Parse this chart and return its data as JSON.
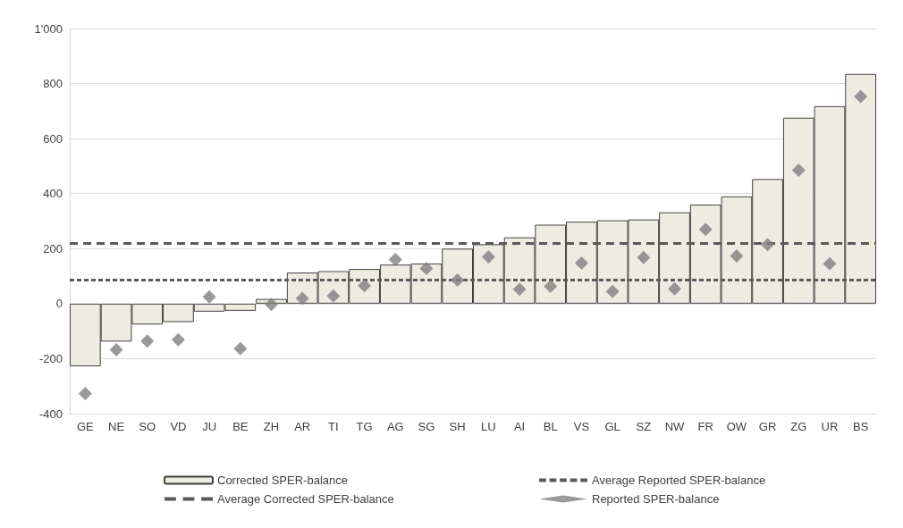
{
  "chart_data": {
    "type": "bar",
    "categories": [
      "GE",
      "NE",
      "SO",
      "VD",
      "JU",
      "BE",
      "ZH",
      "AR",
      "TI",
      "TG",
      "AG",
      "SG",
      "SH",
      "LU",
      "AI",
      "BL",
      "VS",
      "GL",
      "SZ",
      "NW",
      "FR",
      "OW",
      "GR",
      "ZG",
      "UR",
      "BS"
    ],
    "series": [
      {
        "name": "Corrected SPER-balance",
        "color": "#eeece1",
        "values": [
          -228,
          -138,
          -76,
          -67,
          -29,
          -26,
          17,
          113,
          118,
          126,
          142,
          146,
          200,
          216,
          241,
          287,
          298,
          303,
          306,
          332,
          360,
          390,
          453,
          676,
          718,
          835
        ]
      },
      {
        "name": "Reported SPER-balance",
        "type": "scatter",
        "color": "#7f7f7f",
        "marker": "diamond",
        "values": [
          -327,
          -168,
          -136,
          -131,
          25,
          -164,
          -3,
          19,
          28,
          65,
          160,
          128,
          86,
          170,
          52,
          63,
          147,
          44,
          168,
          54,
          270,
          173,
          215,
          485,
          145,
          753
        ]
      }
    ],
    "ref_lines": [
      {
        "axis": "y",
        "value": 220,
        "label": "Average Corrected SPER-balance",
        "color": "#595959",
        "line_style": "dashed"
      },
      {
        "axis": "y",
        "value": 87,
        "label": "Average Reported SPER-balance",
        "color": "#595959",
        "line_style": "dotted"
      }
    ],
    "ylim": [
      -400,
      1000
    ],
    "yticks": [
      -400,
      -200,
      0,
      200,
      400,
      600,
      800,
      {
        "value": 1000,
        "label": "1'000"
      }
    ],
    "grid": "y",
    "legend": "bottom"
  }
}
